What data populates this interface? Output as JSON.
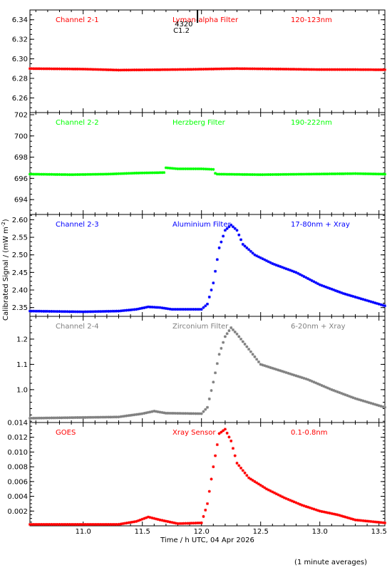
{
  "chart_data": {
    "type": "scatter",
    "xlabel": "Time / h UTC, 04 Apr 2026",
    "ylabel": "Calibrated Signal / (mW m",
    "ylabel_sup": "-2",
    "ylabel_end": ")",
    "footnote": "(1 minute averages)",
    "xlim": [
      10.55,
      13.55
    ],
    "xticks": [
      11.0,
      11.5,
      12.0,
      12.5,
      13.0,
      13.5
    ],
    "xtick_labels": [
      "11.0",
      "11.5",
      "12.0",
      "12.5",
      "13.0",
      "13.5"
    ],
    "flare_marker": {
      "x": 11.93,
      "label_top": "4320",
      "label_bottom": "C1.2"
    },
    "panels": [
      {
        "channel": "Channel 2-1",
        "filter": "Lyman-alpha Filter",
        "band": "120-123nm",
        "color": "#ff0000",
        "ylim": [
          6.245,
          6.35
        ],
        "yticks": [
          6.26,
          6.28,
          6.3,
          6.32,
          6.34
        ],
        "ytick_labels": [
          "6.26",
          "6.28",
          "6.30",
          "6.32",
          "6.34"
        ],
        "series": [
          [
            10.55,
            6.29
          ],
          [
            11.0,
            6.2895
          ],
          [
            11.3,
            6.2885
          ],
          [
            11.6,
            6.2888
          ],
          [
            11.9,
            6.2892
          ],
          [
            12.3,
            6.29
          ],
          [
            12.7,
            6.2895
          ],
          [
            13.0,
            6.289
          ],
          [
            13.3,
            6.289
          ],
          [
            13.55,
            6.2888
          ]
        ]
      },
      {
        "channel": "Channel 2-2",
        "filter": "Herzberg Filter",
        "band": "190-222nm",
        "color": "#00ff00",
        "ylim": [
          692.6,
          702.2
        ],
        "yticks": [
          694,
          696,
          698,
          700,
          702
        ],
        "ytick_labels": [
          "694",
          "696",
          "698",
          "700",
          "702"
        ],
        "series": [
          [
            10.55,
            696.4
          ],
          [
            10.9,
            696.35
          ],
          [
            11.2,
            696.4
          ],
          [
            11.45,
            696.5
          ],
          [
            11.69,
            696.55
          ],
          [
            11.7,
            697.0
          ],
          [
            11.8,
            696.9
          ],
          [
            12.0,
            696.9
          ],
          [
            12.1,
            696.85
          ],
          [
            12.12,
            696.4
          ],
          [
            12.5,
            696.35
          ],
          [
            12.9,
            696.4
          ],
          [
            13.3,
            696.45
          ],
          [
            13.55,
            696.4
          ]
        ]
      },
      {
        "channel": "Channel 2-3",
        "filter": "Aluminium Filter",
        "band": "17-80nm + Xray",
        "color": "#0000ff",
        "ylim": [
          2.325,
          2.615
        ],
        "yticks": [
          2.35,
          2.4,
          2.45,
          2.5,
          2.55,
          2.6
        ],
        "ytick_labels": [
          "2.35",
          "2.40",
          "2.45",
          "2.50",
          "2.55",
          "2.60"
        ],
        "series": [
          [
            10.55,
            2.34
          ],
          [
            11.0,
            2.338
          ],
          [
            11.3,
            2.34
          ],
          [
            11.45,
            2.345
          ],
          [
            11.55,
            2.352
          ],
          [
            11.65,
            2.35
          ],
          [
            11.75,
            2.345
          ],
          [
            12.0,
            2.345
          ],
          [
            12.05,
            2.36
          ],
          [
            12.1,
            2.42
          ],
          [
            12.15,
            2.52
          ],
          [
            12.2,
            2.57
          ],
          [
            12.25,
            2.585
          ],
          [
            12.3,
            2.57
          ],
          [
            12.35,
            2.53
          ],
          [
            12.45,
            2.5
          ],
          [
            12.6,
            2.475
          ],
          [
            12.8,
            2.45
          ],
          [
            13.0,
            2.415
          ],
          [
            13.2,
            2.39
          ],
          [
            13.4,
            2.37
          ],
          [
            13.55,
            2.355
          ]
        ]
      },
      {
        "channel": "Channel 2-4",
        "filter": "Zirconium Filter",
        "band": "6-20nm + Xray",
        "color": "#808080",
        "ylim": [
          0.87,
          1.29
        ],
        "yticks": [
          1.0,
          1.1,
          1.2
        ],
        "ytick_labels": [
          "1.0",
          "1.1",
          "1.2"
        ],
        "series": [
          [
            10.55,
            0.887
          ],
          [
            11.0,
            0.89
          ],
          [
            11.3,
            0.892
          ],
          [
            11.5,
            0.905
          ],
          [
            11.6,
            0.915
          ],
          [
            11.7,
            0.907
          ],
          [
            12.0,
            0.905
          ],
          [
            12.05,
            0.93
          ],
          [
            12.1,
            1.03
          ],
          [
            12.15,
            1.14
          ],
          [
            12.2,
            1.21
          ],
          [
            12.25,
            1.245
          ],
          [
            12.3,
            1.22
          ],
          [
            12.4,
            1.16
          ],
          [
            12.5,
            1.1
          ],
          [
            12.7,
            1.07
          ],
          [
            12.9,
            1.04
          ],
          [
            13.1,
            1.0
          ],
          [
            13.3,
            0.965
          ],
          [
            13.55,
            0.93
          ]
        ]
      },
      {
        "channel": "GOES",
        "filter": "Xray Sensor",
        "band": "0.1-0.8nm",
        "color": "#ff0000",
        "ylim": [
          0.0,
          0.014
        ],
        "yticks": [
          0.002,
          0.004,
          0.006,
          0.008,
          0.01,
          0.012,
          0.014
        ],
        "ytick_labels": [
          "0.002",
          "0.004",
          "0.006",
          "0.008",
          "0.010",
          "0.012",
          "0.014"
        ],
        "series": [
          [
            10.55,
            0.0001
          ],
          [
            11.3,
            0.0002
          ],
          [
            11.45,
            0.0006
          ],
          [
            11.55,
            0.0012
          ],
          [
            11.65,
            0.0008
          ],
          [
            11.8,
            0.0003
          ],
          [
            12.0,
            0.0004
          ],
          [
            12.05,
            0.003
          ],
          [
            12.1,
            0.008
          ],
          [
            12.15,
            0.0125
          ],
          [
            12.2,
            0.0131
          ],
          [
            12.25,
            0.0115
          ],
          [
            12.3,
            0.0085
          ],
          [
            12.4,
            0.0065
          ],
          [
            12.55,
            0.005
          ],
          [
            12.7,
            0.0038
          ],
          [
            12.85,
            0.0028
          ],
          [
            13.0,
            0.002
          ],
          [
            13.15,
            0.0015
          ],
          [
            13.3,
            0.0008
          ],
          [
            13.55,
            0.0004
          ]
        ]
      }
    ]
  }
}
